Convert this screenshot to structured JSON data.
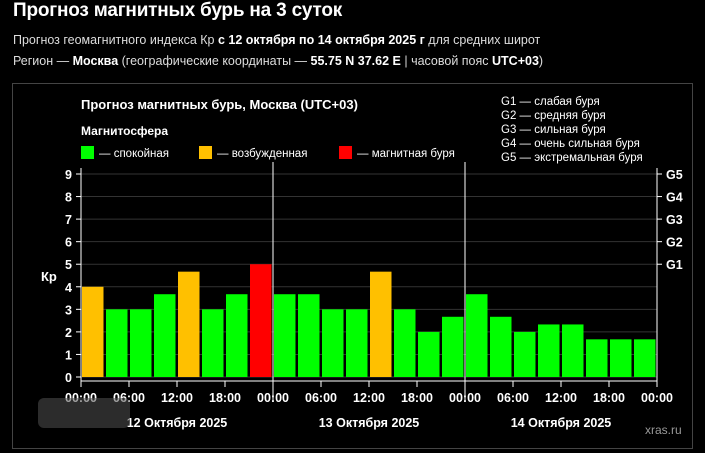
{
  "header": {
    "title": "Прогноз магнитных бурь на 3 суток",
    "line1_prefix": "Прогноз геомагнитного индекса Кр ",
    "line1_period": "с 12 октября по 14 октября 2025 г",
    "line1_suffix": " для средних широт",
    "line2_prefix": "Регион — ",
    "line2_city": "Москва",
    "line2_mid": " (географические координаты — ",
    "line2_coords": "55.75 N 37.62 E",
    "line2_sep": " | часовой пояс ",
    "line2_tz": "UTC+03",
    "line2_end": ")"
  },
  "chart_data": {
    "type": "bar",
    "title": "Прогноз магнитных бурь, Москва (UTC+03)",
    "legend_title": "Магнитосфера",
    "legend": [
      {
        "label": "— спокойная",
        "color": "#00ff00"
      },
      {
        "label": "— возбужденная",
        "color": "#ffc000"
      },
      {
        "label": "— магнитная буря",
        "color": "#ff0000"
      }
    ],
    "storm_levels": [
      "G1 — слабая буря",
      "G2 — средняя буря",
      "G3 — сильная буря",
      "G4 — очень сильная буря",
      "G5 — экстремальная буря"
    ],
    "ylabel": "Кр",
    "ylim": [
      0,
      9
    ],
    "yticks": [
      "0",
      "1",
      "2",
      "3",
      "4",
      "5",
      "6",
      "7",
      "8",
      "9"
    ],
    "right_ticks": [
      {
        "label": "G1",
        "value": 5
      },
      {
        "label": "G2",
        "value": 6
      },
      {
        "label": "G3",
        "value": 7
      },
      {
        "label": "G4",
        "value": 8
      },
      {
        "label": "G5",
        "value": 9
      }
    ],
    "x_tick_labels": [
      "00:00",
      "06:00",
      "12:00",
      "18:00",
      "00:00",
      "06:00",
      "12:00",
      "18:00",
      "00:00",
      "06:00",
      "12:00",
      "18:00",
      "00:00"
    ],
    "days": [
      "12 Октября 2025",
      "13 Октября 2025",
      "14 Октября 2025"
    ],
    "values": [
      4.0,
      3.0,
      3.0,
      3.67,
      4.67,
      3.0,
      3.67,
      5.0,
      3.67,
      3.67,
      3.0,
      3.0,
      4.67,
      3.0,
      2.0,
      2.67,
      3.67,
      2.67,
      2.0,
      2.33,
      2.33,
      1.67,
      1.67,
      1.67
    ],
    "colors": [
      "#ffc000",
      "#00ff00",
      "#00ff00",
      "#00ff00",
      "#ffc000",
      "#00ff00",
      "#00ff00",
      "#ff0000",
      "#00ff00",
      "#00ff00",
      "#00ff00",
      "#00ff00",
      "#ffc000",
      "#00ff00",
      "#00ff00",
      "#00ff00",
      "#00ff00",
      "#00ff00",
      "#00ff00",
      "#00ff00",
      "#00ff00",
      "#00ff00",
      "#00ff00",
      "#00ff00"
    ],
    "grid": true,
    "watermark": "xras.ru"
  }
}
